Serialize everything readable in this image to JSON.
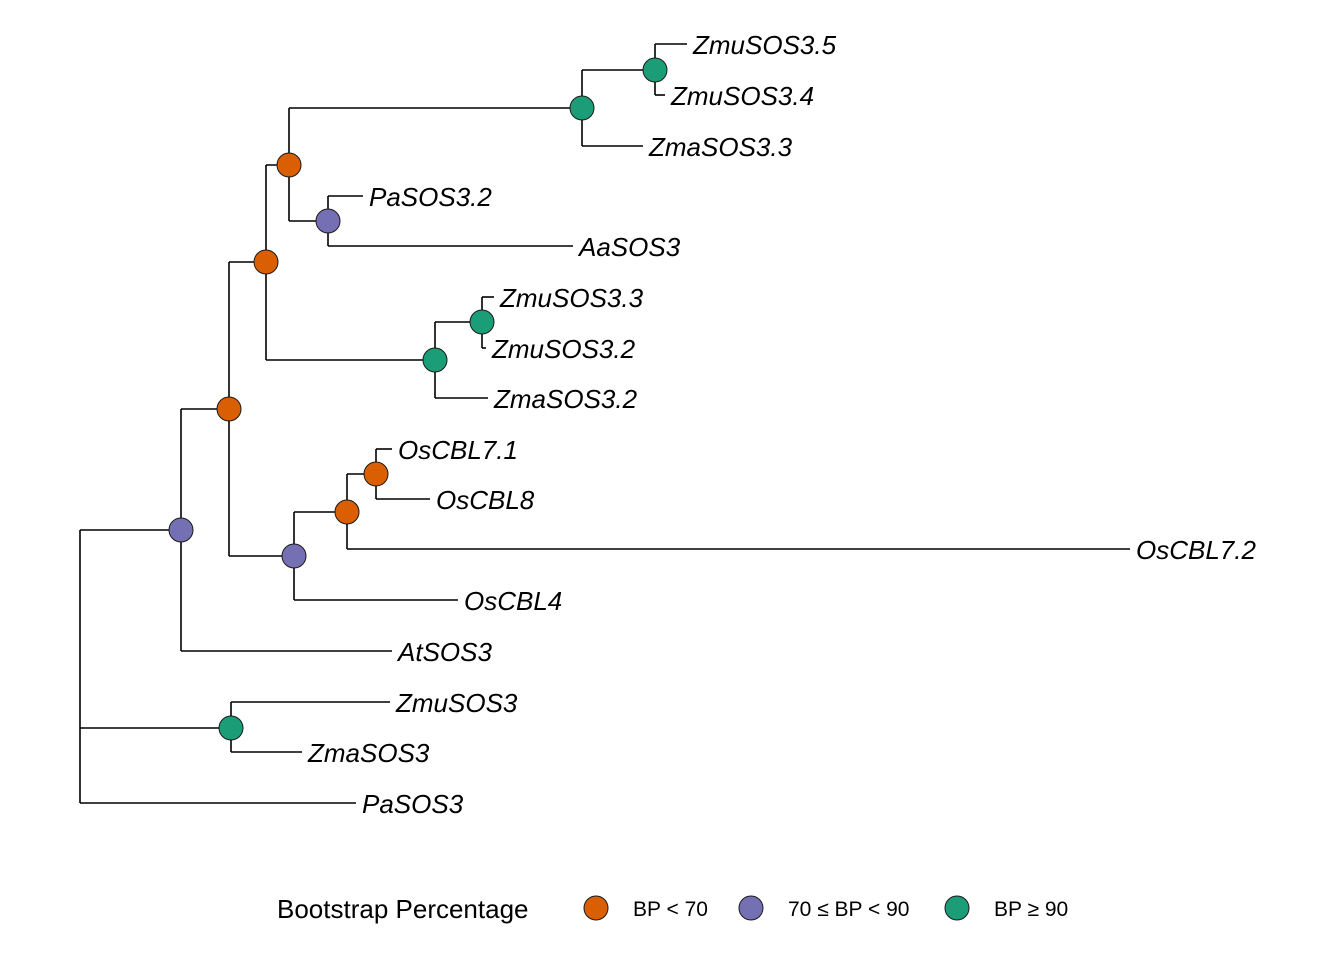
{
  "tips": {
    "t1": "ZmuSOS3.5",
    "t2": "ZmuSOS3.4",
    "t3": "ZmaSOS3.3",
    "t4": "PaSOS3.2",
    "t5": "AaSOS3",
    "t6": "ZmuSOS3.3",
    "t7": "ZmuSOS3.2",
    "t8": "ZmaSOS3.2",
    "t9": "OsCBL7.1",
    "t10": "OsCBL8",
    "t11": "OsCBL7.2",
    "t12": "OsCBL4",
    "t13": "AtSOS3",
    "t14": "ZmuSOS3",
    "t15": "ZmaSOS3",
    "t16": "PaSOS3"
  },
  "support_colors": {
    "low": "#d95f02",
    "mid": "#7570b3",
    "high": "#1b9e77"
  },
  "nodes": [
    {
      "id": "n_zmu35_34",
      "support": "high"
    },
    {
      "id": "n_zm33_clade",
      "support": "high"
    },
    {
      "id": "n_pa32_aa",
      "support": "mid"
    },
    {
      "id": "n_upper",
      "support": "low"
    },
    {
      "id": "n_zmu33_32",
      "support": "high"
    },
    {
      "id": "n_zm32_clade",
      "support": "high"
    },
    {
      "id": "n_upper_mid",
      "support": "low"
    },
    {
      "id": "n_os71_8",
      "support": "low"
    },
    {
      "id": "n_os7",
      "support": "low"
    },
    {
      "id": "n_oscbl",
      "support": "mid"
    },
    {
      "id": "n_core",
      "support": "low"
    },
    {
      "id": "n_with_at",
      "support": "mid"
    },
    {
      "id": "n_zmu_zma",
      "support": "high"
    }
  ],
  "legend": {
    "title": "Bootstrap Percentage",
    "items": [
      {
        "label": "BP < 70",
        "support": "low"
      },
      {
        "label": "70 ≤ BP < 90",
        "support": "mid"
      },
      {
        "label": "BP ≥ 90",
        "support": "high"
      }
    ]
  }
}
